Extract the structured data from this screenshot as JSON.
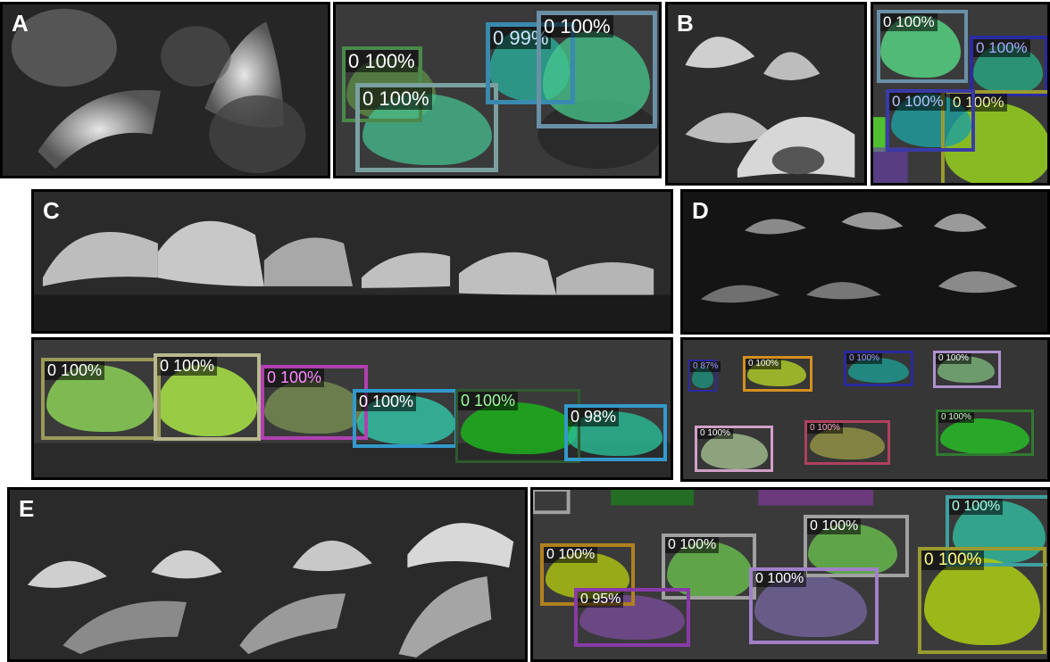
{
  "panel_letters": {
    "a": "A",
    "b": "B",
    "c": "C",
    "d": "D",
    "e": "E"
  },
  "colors": {
    "olive": "#9a9a5a",
    "khaki": "#b8b890",
    "magenta": "#b040b0",
    "blue": "#3399cc",
    "green": "#2f7a2f",
    "teal": "#3fa0a0",
    "lightblue": "#6aa6c8",
    "navy": "#2a2aa0",
    "orange": "#d49020",
    "purple": "#8a3aa8",
    "lavender": "#b090d0",
    "pink": "#d0a0c8",
    "rose": "#b04060",
    "gray": "#a0a0a0",
    "yellow": "#b0a020"
  },
  "detections": {
    "a": [
      {
        "label": "0 100%"
      },
      {
        "label": "0 100%"
      },
      {
        "label": "0 99%"
      },
      {
        "label": "0 100%"
      }
    ],
    "b": [
      {
        "label": "0 100%"
      },
      {
        "label": "0 100%"
      },
      {
        "label": "0 100%"
      },
      {
        "label": "0 100%"
      }
    ],
    "c": [
      {
        "label": "0 100%"
      },
      {
        "label": "0 100%"
      },
      {
        "label": "0 100%"
      },
      {
        "label": "0 100%"
      },
      {
        "label": "0 100%"
      },
      {
        "label": "0 98%"
      }
    ],
    "d": [
      {
        "label": "0 87%"
      },
      {
        "label": "0 100%"
      },
      {
        "label": "0 100%"
      },
      {
        "label": "0 100%"
      },
      {
        "label": "0 100%"
      },
      {
        "label": "0 100%"
      },
      {
        "label": "0 100%"
      }
    ],
    "e": [
      {
        "label": "0 100%"
      },
      {
        "label": "0 100%"
      },
      {
        "label": "0 100%"
      },
      {
        "label": "0 100%"
      },
      {
        "label": "0 95%"
      },
      {
        "label": "0 100%"
      },
      {
        "label": "0 100%"
      }
    ]
  }
}
